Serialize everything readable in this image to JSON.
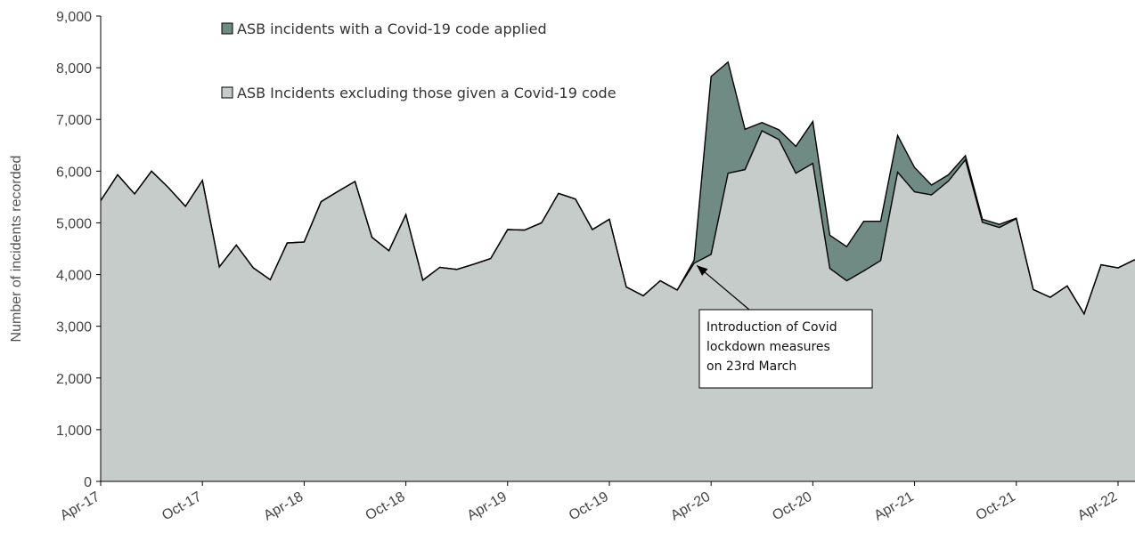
{
  "chart_data": {
    "type": "area",
    "stacked": true,
    "ylabel": "Number of incidents recorded",
    "xlabel": "",
    "ylim": [
      0,
      9000
    ],
    "y_ticks": [
      "0",
      "1,000",
      "2,000",
      "3,000",
      "4,000",
      "5,000",
      "6,000",
      "7,000",
      "8,000",
      "9,000"
    ],
    "y_tick_values": [
      0,
      1000,
      2000,
      3000,
      4000,
      5000,
      6000,
      7000,
      8000,
      9000
    ],
    "x_tick_labels": [
      "Apr-17",
      "Oct-17",
      "Apr-18",
      "Oct-18",
      "Apr-19",
      "Oct-19",
      "Apr-20",
      "Oct-20",
      "Apr-21",
      "Oct-21",
      "Apr-22"
    ],
    "x_tick_positions": [
      0,
      6,
      12,
      18,
      24,
      30,
      36,
      42,
      48,
      54,
      60
    ],
    "x_start": "Apr-17",
    "x_end": "Jun-22",
    "grid": false,
    "legend_position": "top-center",
    "series": [
      {
        "name": "ASB Incidents excluding those given a Covid-19 code",
        "color": "#c5ccc9",
        "values": [
          5430,
          5930,
          5560,
          6000,
          5680,
          5320,
          5820,
          4150,
          4570,
          4130,
          3900,
          4610,
          4630,
          5410,
          5610,
          5800,
          4720,
          4460,
          5160,
          3890,
          4140,
          4100,
          4200,
          4310,
          4870,
          4860,
          5000,
          5570,
          5460,
          4870,
          5070,
          3760,
          3590,
          3880,
          3700,
          4220,
          4390,
          5960,
          6030,
          6780,
          6610,
          5960,
          6150,
          4120,
          3880,
          4070,
          4270,
          5980,
          5600,
          5540,
          5810,
          6220,
          5010,
          4910,
          5080,
          3710,
          3560,
          3780,
          3240,
          4190,
          4130,
          4290
        ]
      },
      {
        "name": "ASB incidents with a Covid-19 code applied",
        "color": "#6f8b84",
        "values": [
          0,
          0,
          0,
          0,
          0,
          0,
          0,
          0,
          0,
          0,
          0,
          0,
          0,
          0,
          0,
          0,
          0,
          0,
          0,
          0,
          0,
          0,
          0,
          0,
          0,
          0,
          0,
          0,
          0,
          0,
          0,
          0,
          0,
          0,
          0,
          60,
          3440,
          2150,
          780,
          160,
          190,
          520,
          810,
          640,
          660,
          960,
          760,
          710,
          470,
          190,
          120,
          80,
          60,
          60,
          10,
          0,
          0,
          0,
          0,
          0,
          0,
          0
        ]
      }
    ],
    "annotation": {
      "lines": [
        "Introduction of Covid",
        "lockdown measures",
        "on 23rd March"
      ],
      "points_to_index": 35
    }
  }
}
